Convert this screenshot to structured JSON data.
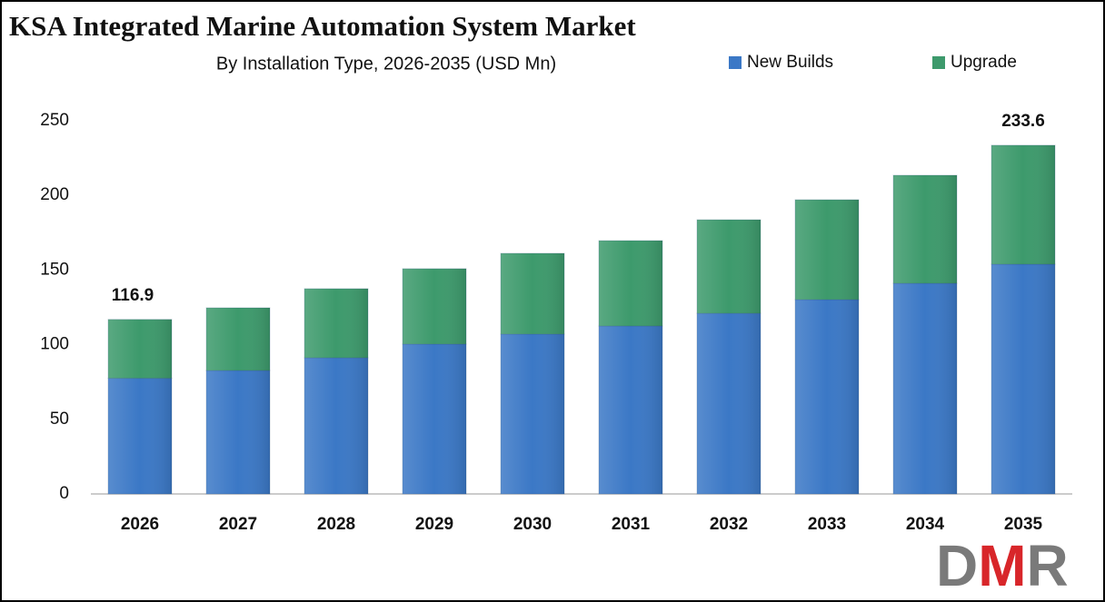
{
  "chart_data": {
    "type": "stacked-bar",
    "title": "KSA Integrated Marine Automation System Market",
    "subtitle": "By Installation Type, 2026-2035 (USD Mn)",
    "categories": [
      "2026",
      "2027",
      "2028",
      "2029",
      "2030",
      "2031",
      "2032",
      "2033",
      "2034",
      "2035"
    ],
    "series": [
      {
        "name": "New Builds",
        "color": "#3b78c6",
        "values": [
          77.5,
          82.7,
          91.2,
          100.4,
          107.1,
          112.5,
          121.0,
          130.2,
          141.1,
          153.9
        ]
      },
      {
        "name": "Upgrade",
        "color": "#3d9a6c",
        "values": [
          39.4,
          42.0,
          46.3,
          50.5,
          54.1,
          57.2,
          62.7,
          66.9,
          72.4,
          79.7
        ]
      }
    ],
    "total_labels": [
      {
        "category": "2026",
        "value": 116.9
      },
      {
        "category": "2035",
        "value": 233.6
      }
    ],
    "ylim": [
      0,
      250
    ],
    "yticks": [
      0,
      50,
      100,
      150,
      200,
      250
    ],
    "grid": false,
    "legend": "top-right",
    "logo": "DMR"
  }
}
